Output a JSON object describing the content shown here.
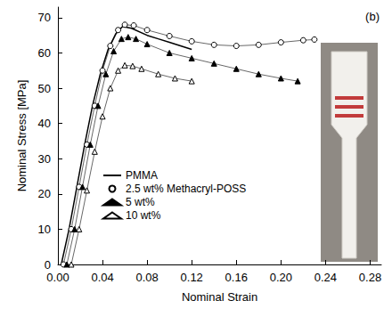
{
  "chart_data": {
    "type": "line",
    "x_label": "Nominal Strain",
    "y_label": "Nominal Stress [MPa]",
    "annotations": [
      "(b)"
    ],
    "xlim": [
      0,
      0.29
    ],
    "xticks": [
      {
        "value": 0,
        "label": "0.00"
      },
      0.04,
      0.08,
      0.12,
      0.16,
      {
        "value": 0.2,
        "label": "0.20"
      },
      0.24,
      0.28
    ],
    "ylim": [
      0,
      73
    ],
    "yticks": [
      0,
      10,
      20,
      30,
      40,
      50,
      60,
      70
    ],
    "grid": false,
    "legend": "lower left",
    "series": [
      {
        "name": "PMMA",
        "color": "#000000",
        "marker": "none",
        "line_style": "solid",
        "x": [
          0.003,
          0.01,
          0.017,
          0.024,
          0.031,
          0.038,
          0.045,
          0.052,
          0.058,
          0.066,
          0.08,
          0.09,
          0.1,
          0.11,
          0.12
        ],
        "values": [
          0,
          10,
          22,
          34,
          45,
          54,
          61,
          65.5,
          67.5,
          67,
          65,
          64,
          63,
          62,
          61
        ]
      },
      {
        "name": "2.5 wt% Methacryl-POSS",
        "color": "#000000",
        "marker": "open_circle",
        "line_style": "none",
        "x": [
          0.005,
          0.012,
          0.019,
          0.026,
          0.033,
          0.04,
          0.047,
          0.054,
          0.06,
          0.068,
          0.08,
          0.1,
          0.12,
          0.14,
          0.16,
          0.18,
          0.2,
          0.22,
          0.23
        ],
        "values": [
          0,
          10,
          22,
          34,
          45,
          55,
          62,
          66.5,
          68,
          67.8,
          66.5,
          64.8,
          63.3,
          62.3,
          62,
          62.3,
          63,
          63.6,
          63.8
        ]
      },
      {
        "name": "5 wt%",
        "color": "#000000",
        "marker": "filled_triangle",
        "line_style": "none",
        "x": [
          0.008,
          0.015,
          0.022,
          0.029,
          0.036,
          0.043,
          0.05,
          0.057,
          0.063,
          0.07,
          0.08,
          0.1,
          0.12,
          0.14,
          0.16,
          0.18,
          0.2,
          0.215
        ],
        "values": [
          0,
          10,
          22,
          34,
          45,
          54,
          60.5,
          64,
          64.5,
          64,
          62.5,
          60,
          58.5,
          57,
          55.5,
          54,
          52.8,
          52
        ]
      },
      {
        "name": "10 wt%",
        "color": "#000000",
        "marker": "open_triangle",
        "line_style": "none",
        "x": [
          0.012,
          0.019,
          0.026,
          0.033,
          0.04,
          0.047,
          0.054,
          0.06,
          0.067,
          0.075,
          0.09,
          0.105,
          0.12
        ],
        "values": [
          0,
          10,
          21,
          32,
          42,
          50,
          55,
          56.5,
          56.3,
          55.5,
          54,
          52.8,
          52
        ]
      }
    ]
  }
}
